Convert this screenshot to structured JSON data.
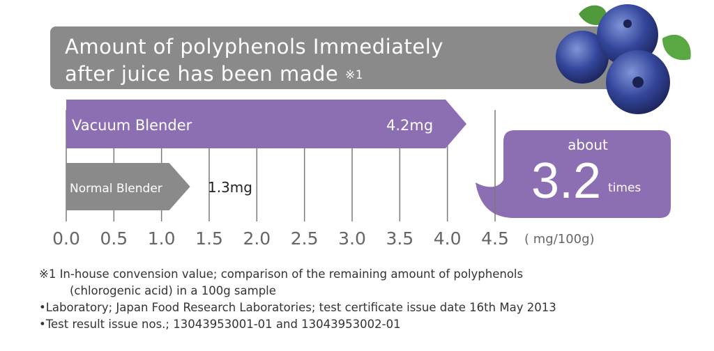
{
  "title": {
    "line1": "Amount of polyphenols Immediately",
    "line2": "after juice has been made",
    "note_mark": "※1"
  },
  "chart_data": {
    "type": "bar",
    "orientation": "horizontal",
    "categories": [
      "Vacuum Blender",
      "Normal Blender"
    ],
    "values": [
      4.2,
      1.3
    ],
    "value_labels": [
      "4.2mg",
      "1.3mg"
    ],
    "xlim": [
      0,
      4.5
    ],
    "x_ticks": [
      "0.0",
      "0.5",
      "1.0",
      "1.5",
      "2.0",
      "2.5",
      "3.0",
      "3.5",
      "4.0",
      "4.5"
    ],
    "x_unit": "( mg/100g)",
    "grid": true,
    "colors": {
      "vacuum": "#8c6fb2",
      "normal": "#8a8a8a",
      "grid": "#7a7a7a"
    }
  },
  "callout": {
    "prefix": "about",
    "value": "3.2",
    "unit": "times"
  },
  "notes": {
    "note1_line1": "※1 In-house convension value; comparison of the remaining amount of polyphenols",
    "note1_line2": "(chlorogenic acid) in a 100g sample",
    "note2": "•Laboratory; Japan Food Research Laboratories; test certificate issue date 16th May 2013",
    "note3": "•Test result issue nos.; 13043953001-01 and 13043953002-01"
  },
  "decoration": {
    "image": "blueberries-icon"
  }
}
